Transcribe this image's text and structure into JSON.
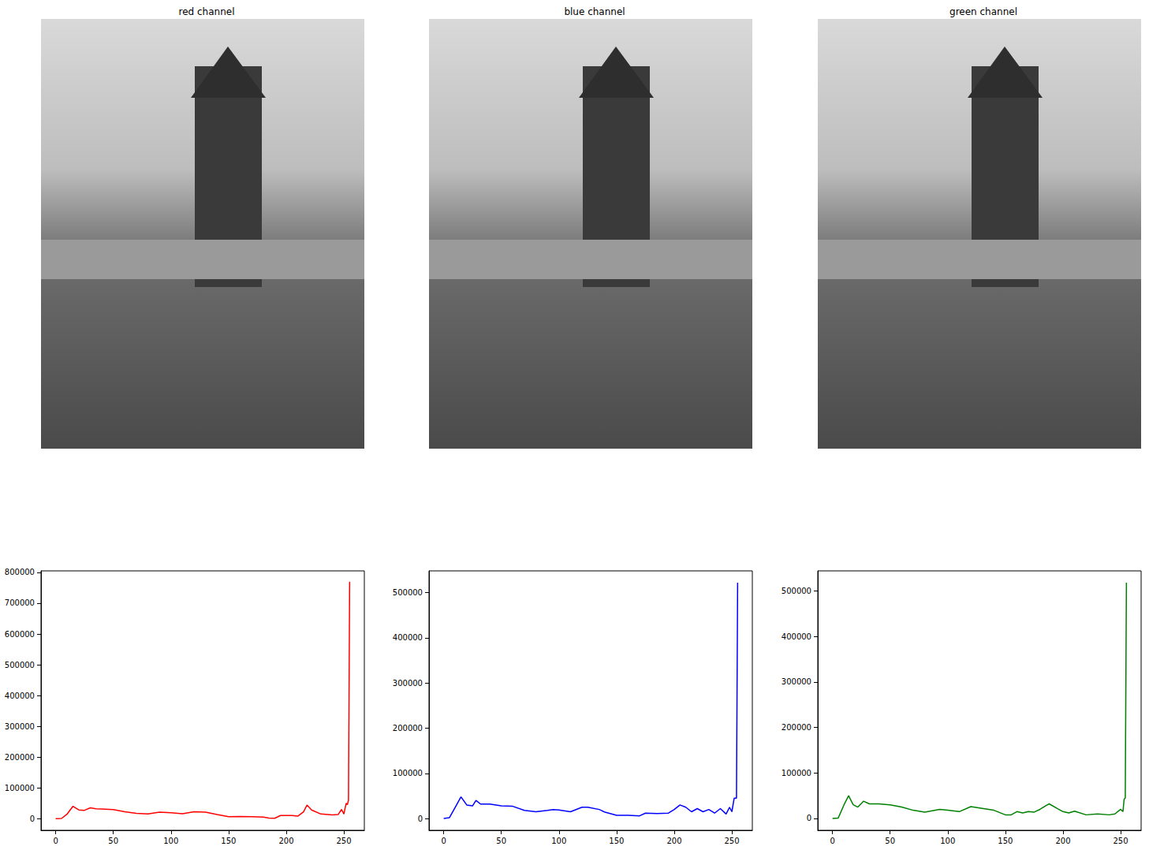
{
  "chart_data": [
    {
      "type": "image",
      "title": "red channel"
    },
    {
      "type": "image",
      "title": "blue channel"
    },
    {
      "type": "image",
      "title": "green channel"
    },
    {
      "type": "line",
      "grid": false,
      "line_style": "solid",
      "xlim": [
        -12.75,
        267.75
      ],
      "xticks": [
        0,
        50,
        100,
        150,
        200,
        250
      ],
      "ylim": [
        -38000,
        805000
      ],
      "yticks": [
        0,
        100000,
        200000,
        300000,
        400000,
        500000,
        600000,
        700000,
        800000
      ],
      "x": [
        0,
        5,
        10,
        15,
        20,
        25,
        30,
        35,
        40,
        50,
        60,
        70,
        80,
        90,
        100,
        110,
        120,
        130,
        140,
        150,
        160,
        170,
        180,
        185,
        190,
        195,
        205,
        210,
        215,
        218,
        222,
        230,
        240,
        245,
        248,
        250,
        252,
        253,
        254,
        255
      ],
      "series": [
        {
          "color": "#ff0000",
          "values": [
            0,
            500,
            15000,
            40000,
            28000,
            27000,
            35000,
            32000,
            31000,
            29000,
            22000,
            17000,
            15000,
            21000,
            19000,
            16000,
            22000,
            21000,
            13000,
            6000,
            7000,
            6000,
            5000,
            2000,
            1000,
            10000,
            10000,
            8000,
            22000,
            44000,
            28000,
            15000,
            12000,
            13000,
            30000,
            15000,
            50000,
            45000,
            60000,
            770000
          ]
        }
      ]
    },
    {
      "type": "line",
      "grid": false,
      "line_style": "solid",
      "xlim": [
        -12.75,
        267.75
      ],
      "xticks": [
        0,
        50,
        100,
        150,
        200,
        250
      ],
      "ylim": [
        -26000,
        548000
      ],
      "yticks": [
        0,
        100000,
        200000,
        300000,
        400000,
        500000
      ],
      "x": [
        0,
        5,
        10,
        15,
        20,
        25,
        28,
        32,
        40,
        50,
        60,
        70,
        80,
        90,
        95,
        100,
        110,
        120,
        125,
        135,
        140,
        150,
        160,
        170,
        175,
        185,
        195,
        200,
        205,
        210,
        215,
        220,
        225,
        230,
        235,
        240,
        245,
        248,
        250,
        252,
        254,
        255
      ],
      "series": [
        {
          "color": "#0000ff",
          "values": [
            0,
            2000,
            25000,
            48000,
            30000,
            28000,
            40000,
            32000,
            32000,
            28000,
            27000,
            18000,
            15000,
            18000,
            20000,
            19000,
            15000,
            25000,
            25000,
            20000,
            14000,
            7000,
            7000,
            6000,
            12000,
            11000,
            12000,
            20000,
            30000,
            25000,
            15000,
            22000,
            15000,
            20000,
            12000,
            22000,
            10000,
            25000,
            15000,
            45000,
            45000,
            522000
          ]
        }
      ]
    },
    {
      "type": "line",
      "grid": false,
      "line_style": "solid",
      "xlim": [
        -12.75,
        267.75
      ],
      "xticks": [
        0,
        50,
        100,
        150,
        200,
        250
      ],
      "ylim": [
        -26000,
        544000
      ],
      "yticks": [
        0,
        100000,
        200000,
        300000,
        400000,
        500000
      ],
      "x": [
        0,
        5,
        10,
        14,
        18,
        22,
        27,
        32,
        40,
        50,
        60,
        70,
        80,
        93,
        100,
        110,
        120,
        130,
        140,
        150,
        155,
        160,
        165,
        170,
        175,
        180,
        185,
        188,
        195,
        200,
        205,
        210,
        220,
        230,
        240,
        245,
        250,
        252,
        253,
        254,
        255
      ],
      "series": [
        {
          "color": "#008000",
          "values": [
            0,
            1000,
            30000,
            50000,
            30000,
            25000,
            38000,
            32000,
            32000,
            30000,
            25000,
            18000,
            14000,
            20000,
            18000,
            15000,
            26000,
            22000,
            18000,
            8000,
            8000,
            15000,
            12000,
            15000,
            14000,
            20000,
            28000,
            32000,
            22000,
            15000,
            12000,
            16000,
            8000,
            10000,
            8000,
            10000,
            20000,
            15000,
            42000,
            45000,
            518000
          ]
        }
      ]
    }
  ]
}
